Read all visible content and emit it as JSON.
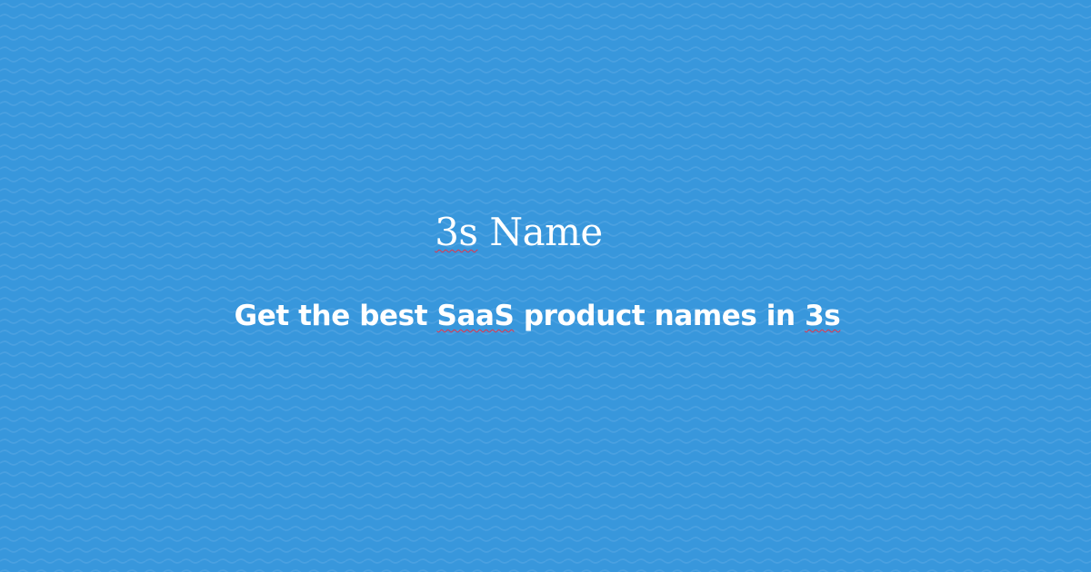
{
  "page": {
    "background_color": "#3897dc",
    "wave_color": "#4aa0e0"
  },
  "hero": {
    "title_prefix": "3s",
    "title_suffix": " Name",
    "subtitle_part1": "Get the best ",
    "subtitle_saas": "SaaS",
    "subtitle_part2": " product names in ",
    "subtitle_3s": "3s"
  },
  "spellcheck_color": "#e0354a"
}
